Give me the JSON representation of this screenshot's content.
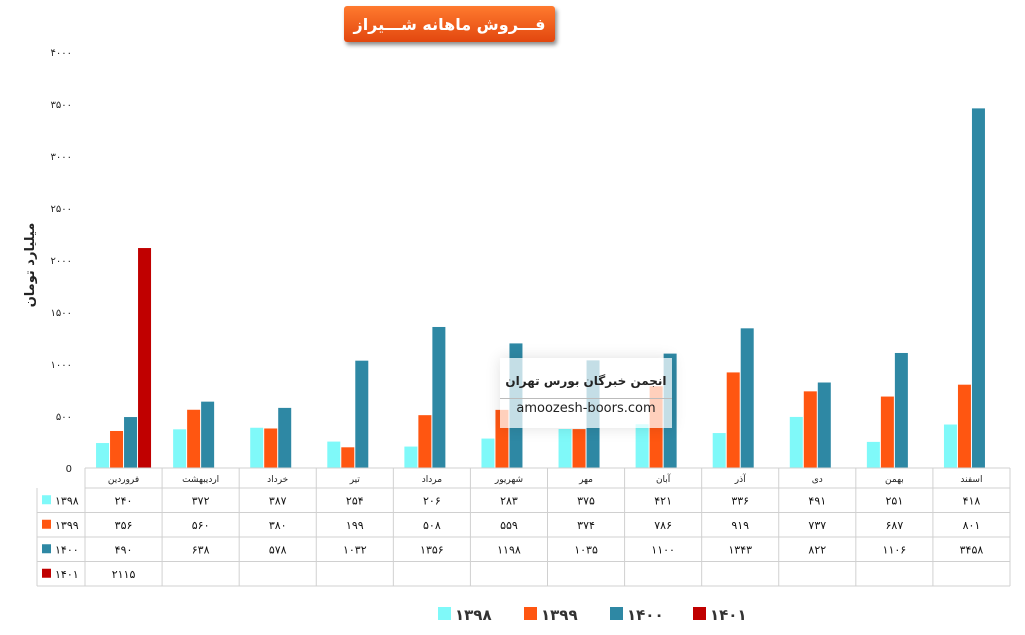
{
  "title": "فـــروش ماهانه شـــیراز",
  "watermark": {
    "name": "انجمن خبرگان بورس تهران",
    "site": "amoozesh-boors.com"
  },
  "chart_data": {
    "type": "bar",
    "ylabel": "میلیارد تومان",
    "ylim": [
      0,
      4000
    ],
    "yticks": [
      0,
      500,
      1000,
      1500,
      2000,
      2500,
      3000,
      3500,
      4000
    ],
    "ytick_labels": [
      "0",
      "۵۰۰",
      "۱۰۰۰",
      "۱۵۰۰",
      "۲۰۰۰",
      "۲۵۰۰",
      "۳۰۰۰",
      "۳۵۰۰",
      "۴۰۰۰"
    ],
    "categories": [
      "فروردین",
      "اردیبهشت",
      "خرداد",
      "تیر",
      "مرداد",
      "شهریور",
      "مهر",
      "آبان",
      "آذر",
      "دی",
      "بهمن",
      "اسفند"
    ],
    "series": [
      {
        "name": "۱۳۹۸",
        "color": "#7ff9f9",
        "values": [
          240,
          372,
          387,
          254,
          206,
          283,
          375,
          421,
          336,
          491,
          251,
          418
        ],
        "labels": [
          "۲۴۰",
          "۳۷۲",
          "۳۸۷",
          "۲۵۴",
          "۲۰۶",
          "۲۸۳",
          "۳۷۵",
          "۴۲۱",
          "۳۳۶",
          "۴۹۱",
          "۲۵۱",
          "۴۱۸"
        ]
      },
      {
        "name": "۱۳۹۹",
        "color": "#ff5611",
        "values": [
          356,
          560,
          380,
          199,
          508,
          559,
          374,
          786,
          919,
          737,
          687,
          801
        ],
        "labels": [
          "۳۵۶",
          "۵۶۰",
          "۳۸۰",
          "۱۹۹",
          "۵۰۸",
          "۵۵۹",
          "۳۷۴",
          "۷۸۶",
          "۹۱۹",
          "۷۳۷",
          "۶۸۷",
          "۸۰۱"
        ]
      },
      {
        "name": "۱۴۰۰",
        "color": "#2e88a4",
        "values": [
          490,
          638,
          578,
          1032,
          1356,
          1198,
          1035,
          1100,
          1343,
          822,
          1106,
          3458
        ],
        "labels": [
          "۴۹۰",
          "۶۳۸",
          "۵۷۸",
          "۱۰۳۲",
          "۱۳۵۶",
          "۱۱۹۸",
          "۱۰۳۵",
          "۱۱۰۰",
          "۱۳۴۳",
          "۸۲۲",
          "۱۱۰۶",
          "۳۴۵۸"
        ]
      },
      {
        "name": "۱۴۰۱",
        "color": "#c00000",
        "values": [
          2115,
          null,
          null,
          null,
          null,
          null,
          null,
          null,
          null,
          null,
          null,
          null
        ],
        "labels": [
          "۲۱۱۵",
          "",
          "",
          "",
          "",
          "",
          "",
          "",
          "",
          "",
          "",
          ""
        ]
      }
    ],
    "grid": false,
    "legend": "bottom"
  }
}
